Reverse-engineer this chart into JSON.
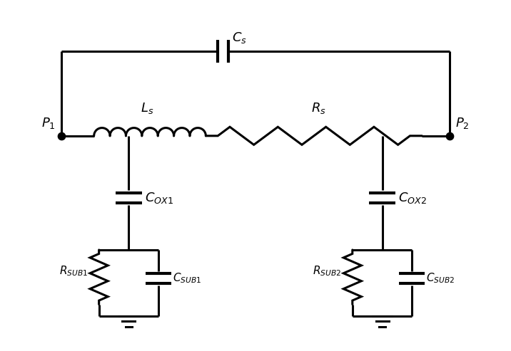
{
  "background_color": "#ffffff",
  "line_color": "#000000",
  "line_width": 2.2,
  "port1_label": "$P_1$",
  "port2_label": "$P_2$",
  "Cs_label": "$C_s$",
  "Ls_label": "$L_s$",
  "Rs_label": "$R_s$",
  "Cox1_label": "$C_{OX1}$",
  "Cox2_label": "$C_{OX2}$",
  "Rsub1_label": "$R_{SUB1}$",
  "Csub1_label": "$C_{SUB1}$",
  "Rsub2_label": "$R_{SUB2}$",
  "Csub2_label": "$C_{SUB2}$",
  "figsize": [
    7.16,
    4.93
  ],
  "dpi": 100
}
